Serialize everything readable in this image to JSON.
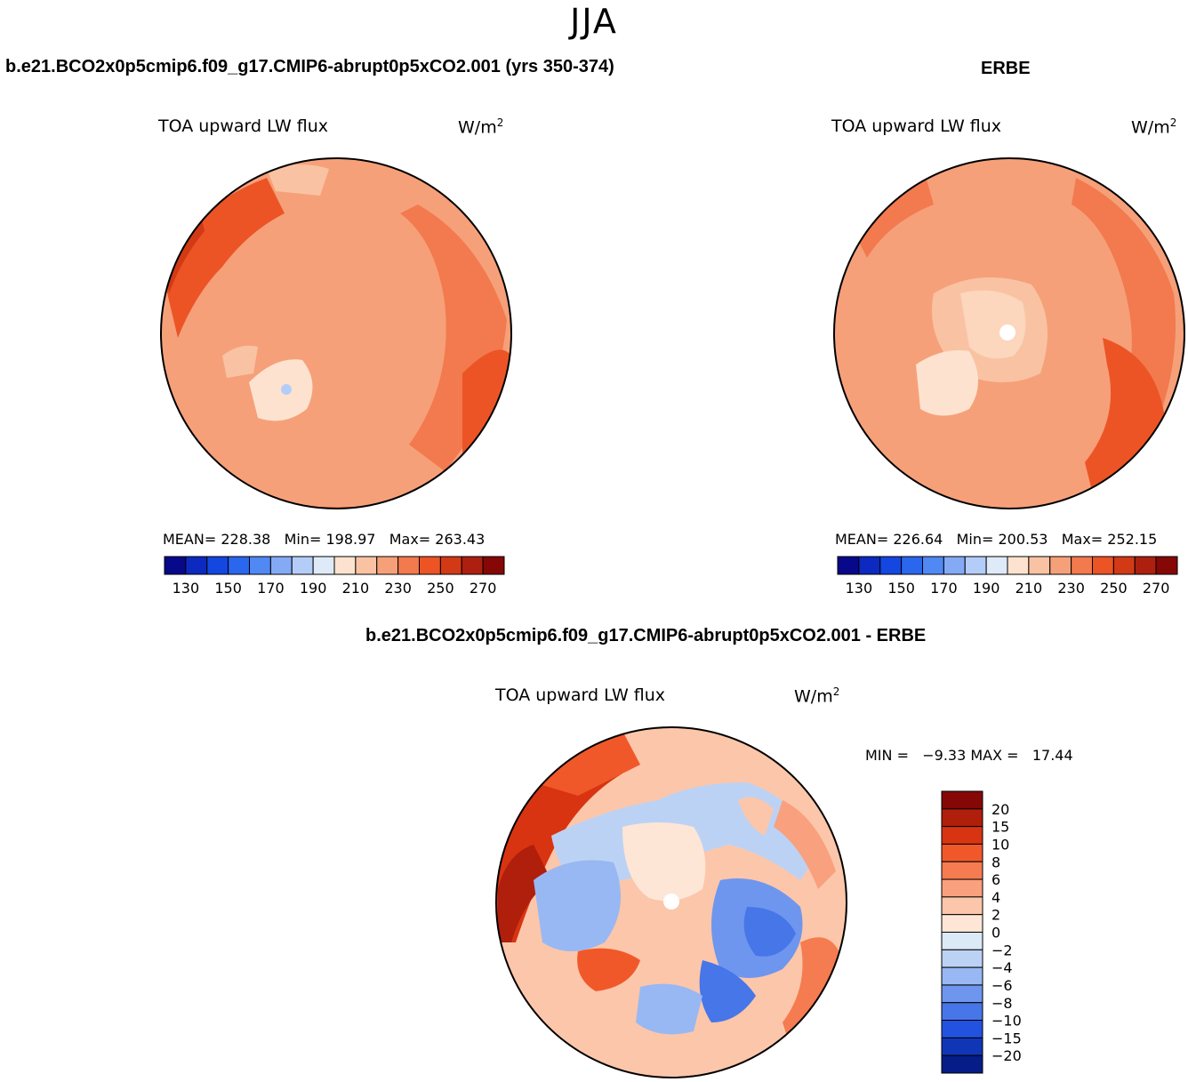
{
  "season": "JJA",
  "panels": [
    {
      "id": "model",
      "header": "b.e21.BCO2x0p5cmip6.f09_g17.CMIP6-abrupt0p5xCO2.001 (yrs 350-374)",
      "variable": "TOA upward LW flux",
      "units": "W/m",
      "units_sup": "2",
      "mean_label": "MEAN=",
      "mean": "228.38",
      "min_label": "Min=",
      "min": "198.97",
      "max_label": "Max=",
      "max": "263.43"
    },
    {
      "id": "obs",
      "header": "ERBE",
      "variable": "TOA upward LW flux",
      "units": "W/m",
      "units_sup": "2",
      "mean_label": "MEAN=",
      "mean": "226.64",
      "min_label": "Min=",
      "min": "200.53",
      "max_label": "Max=",
      "max": "252.15"
    }
  ],
  "diff_panel": {
    "header": "b.e21.BCO2x0p5cmip6.f09_g17.CMIP6-abrupt0p5xCO2.001 - ERBE",
    "variable": "TOA upward LW flux",
    "units": "W/m",
    "units_sup": "2",
    "min_label": "MIN =",
    "min": "−9.33",
    "max_label": "MAX =",
    "max": "17.44"
  },
  "abs_colorbar": {
    "colors": [
      "#08088a",
      "#0c2ac0",
      "#1446e0",
      "#2a66ee",
      "#5088f4",
      "#84aaf6",
      "#b4cdf8",
      "#deeaf8",
      "#fde3cf",
      "#f9c3a3",
      "#f6a07a",
      "#f27a4e",
      "#ec5426",
      "#d23a16",
      "#ad2010",
      "#850806"
    ],
    "tick_labels": [
      "130",
      "150",
      "170",
      "190",
      "210",
      "230",
      "250",
      "270"
    ]
  },
  "diff_colorbar": {
    "colors": [
      "#850806",
      "#b01e0c",
      "#d83412",
      "#f0582a",
      "#f57c50",
      "#f9a07e",
      "#fcc6aa",
      "#fde6d6",
      "#dce9f7",
      "#bcd2f5",
      "#98b8f3",
      "#6e96ee",
      "#4676e8",
      "#2452e0",
      "#1036b8",
      "#061c88"
    ],
    "tick_labels": [
      "20",
      "15",
      "10",
      "8",
      "6",
      "4",
      "2",
      "0",
      "−2",
      "−4",
      "−6",
      "−8",
      "−10",
      "−15",
      "−20"
    ]
  }
}
